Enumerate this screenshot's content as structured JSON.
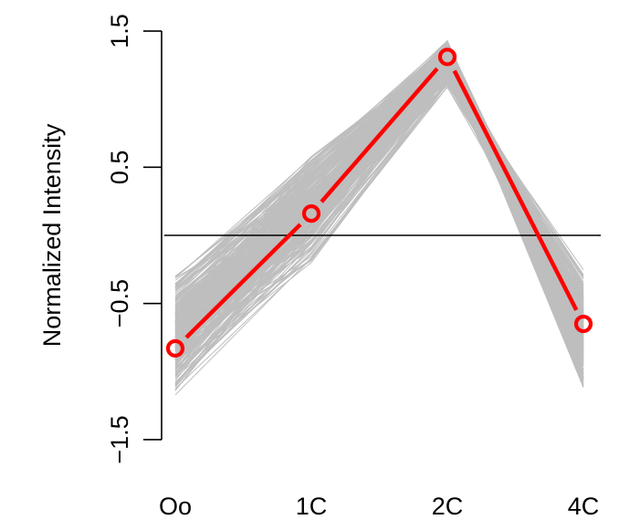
{
  "chart_data": {
    "type": "line",
    "title": "",
    "xlabel": "",
    "ylabel": "Normalized Intensity",
    "categories": [
      "Oo",
      "1C",
      "2C",
      "4C"
    ],
    "ylim": [
      -1.5,
      1.5
    ],
    "yticks": [
      -1.5,
      -0.5,
      0.5,
      1.5
    ],
    "yticks_labels": [
      "−1.5",
      "−0.5",
      "0.5",
      "1.5"
    ],
    "reference_line_y": 0,
    "grid": false,
    "legend": "none",
    "series": [
      {
        "values": [
          -0.83,
          0.16,
          1.31,
          -0.65
        ],
        "color": "#ff0000",
        "markers": "open-circle",
        "role": "cluster-centroid"
      }
    ],
    "background_profiles": {
      "color": "#bebebe",
      "count": 300,
      "ranges": [
        {
          "category": "Oo",
          "min": -1.18,
          "max": -0.27
        },
        {
          "category": "1C",
          "min": -0.23,
          "max": 0.64
        },
        {
          "category": "2C",
          "min": 1.08,
          "max": 1.45
        },
        {
          "category": "4C",
          "min": -1.17,
          "max": -0.2
        }
      ]
    }
  }
}
